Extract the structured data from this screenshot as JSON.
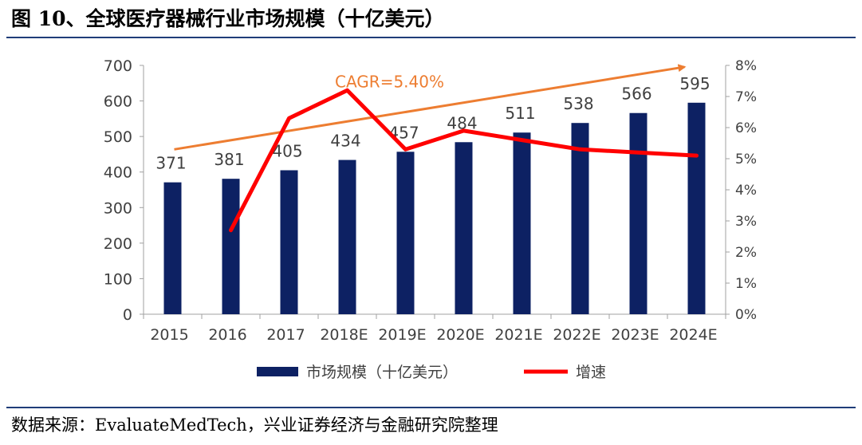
{
  "title": "图 10、全球医疗器械行业市场规模（十亿美元）",
  "source": "数据来源：EvaluateMedTech，兴业证券经济与金融研究院整理",
  "colors": {
    "bar": "#0d2163",
    "line": "#ff0000",
    "cagr": "#ed7d31",
    "rule": "#1f3d78"
  },
  "chart_data": {
    "type": "bar+line",
    "categories": [
      "2015",
      "2016",
      "2017",
      "2018E",
      "2019E",
      "2020E",
      "2021E",
      "2022E",
      "2023E",
      "2024E"
    ],
    "series": [
      {
        "name": "市场规模（十亿美元）",
        "type": "bar",
        "axis": "left",
        "values": [
          371,
          381,
          405,
          434,
          457,
          484,
          511,
          538,
          566,
          595
        ],
        "labels": [
          "371",
          "381",
          "405",
          "434",
          "457",
          "484",
          "511",
          "538",
          "566",
          "595"
        ]
      },
      {
        "name": "增速",
        "type": "line",
        "axis": "right",
        "values": [
          null,
          2.7,
          6.3,
          7.2,
          5.3,
          5.9,
          5.6,
          5.3,
          5.2,
          5.1
        ]
      }
    ],
    "left_axis": {
      "min": 0,
      "max": 700,
      "ticks": [
        "0",
        "100",
        "200",
        "300",
        "400",
        "500",
        "600",
        "700"
      ]
    },
    "right_axis": {
      "min": 0,
      "max": 8,
      "ticks": [
        "0%",
        "1%",
        "2%",
        "3%",
        "4%",
        "5%",
        "6%",
        "7%",
        "8%"
      ]
    },
    "annotation": {
      "text": "CAGR=5.40%",
      "from_value": 5.3,
      "to_value": 7.95
    },
    "legend": {
      "position": "bottom",
      "items": [
        "市场规模（十亿美元）",
        "增速"
      ]
    }
  }
}
